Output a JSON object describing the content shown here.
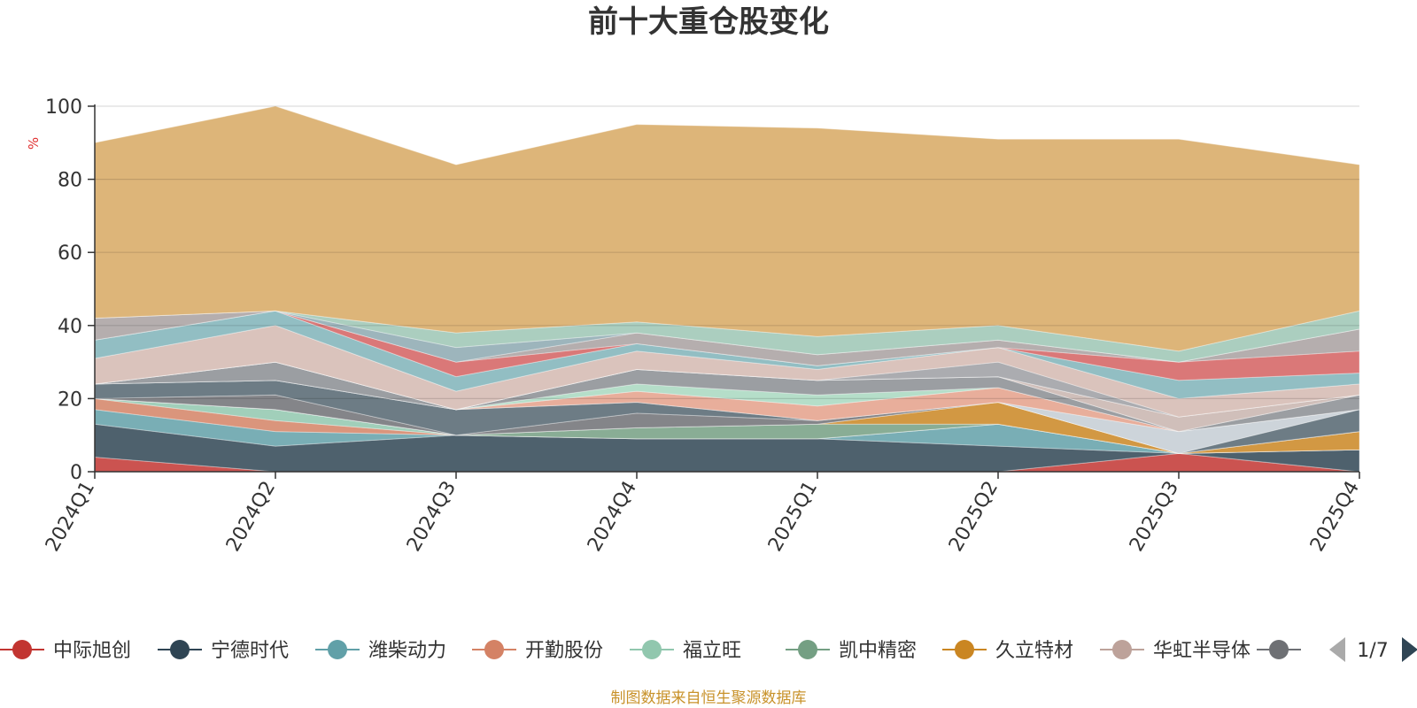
{
  "chart_data": {
    "type": "area",
    "title": "前十大重仓股变化",
    "ylabel": "%",
    "ylim": [
      0,
      100
    ],
    "yticks": [
      "0",
      "20",
      "40",
      "60",
      "80",
      "100"
    ],
    "categories": [
      "2024Q1",
      "2024Q2",
      "2024Q3",
      "2024Q4",
      "2025Q1",
      "2025Q2",
      "2025Q3",
      "2025Q4"
    ],
    "series": [
      {
        "name": "中际旭创",
        "color": "#c23531",
        "values": [
          4,
          0,
          0,
          0,
          0,
          0,
          5,
          0
        ]
      },
      {
        "name": "宁德时代",
        "color": "#2f4554",
        "values": [
          9,
          7,
          10,
          9,
          9,
          7,
          0,
          6
        ]
      },
      {
        "name": "潍柴动力",
        "color": "#61a0a8",
        "values": [
          4,
          4,
          0,
          0,
          0,
          6,
          0,
          0
        ]
      },
      {
        "name": "开勤股份",
        "color": "#d48265",
        "values": [
          3,
          3,
          0,
          0,
          0,
          0,
          0,
          0
        ]
      },
      {
        "name": "福立旺",
        "color": "#91c7ae",
        "values": [
          0,
          3,
          0,
          0,
          0,
          0,
          0,
          0
        ]
      },
      {
        "name": "凯中精密",
        "color": "#749f83",
        "values": [
          0,
          0,
          0,
          3,
          4,
          0,
          0,
          0
        ]
      },
      {
        "name": "久立特材",
        "color": "#ca8622",
        "values": [
          0,
          0,
          0,
          0,
          0,
          6,
          0,
          5
        ]
      },
      {
        "name": "华虹半导体",
        "color": "#bda29a",
        "values": [
          0,
          0,
          0,
          0,
          0,
          0,
          0,
          0
        ]
      },
      {
        "name": "",
        "color": "#6e7074",
        "values": [
          0,
          4,
          0,
          4,
          1,
          0,
          0,
          0
        ]
      },
      {
        "name": "",
        "color": "#546570",
        "values": [
          4,
          4,
          7,
          3,
          0,
          0,
          0,
          6
        ]
      },
      {
        "name": "",
        "color": "#c4ccd3",
        "values": [
          0,
          0,
          0,
          0,
          0,
          0,
          6,
          0
        ]
      },
      {
        "name": "",
        "color": "#e4a08a",
        "values": [
          0,
          0,
          0,
          3,
          4,
          4,
          0,
          0
        ]
      },
      {
        "name": "",
        "color": "#a8d8c0",
        "values": [
          0,
          0,
          0,
          2,
          3,
          0,
          0,
          0
        ]
      },
      {
        "name": "",
        "color": "#8a8d92",
        "values": [
          0,
          5,
          0,
          4,
          4,
          3,
          0,
          4
        ]
      },
      {
        "name": "",
        "color": "#d58080",
        "values": [
          0,
          0,
          0,
          0,
          0,
          0,
          0,
          0
        ]
      },
      {
        "name": "",
        "color": "#c8b4ae",
        "values": [
          0,
          0,
          0,
          0,
          0,
          0,
          4,
          0
        ]
      },
      {
        "name": "",
        "color": "#90a0a8",
        "values": [
          0,
          0,
          0,
          0,
          0,
          0,
          0,
          0
        ]
      },
      {
        "name": "",
        "color": "#9c9ea2",
        "values": [
          0,
          0,
          0,
          0,
          0,
          4,
          0,
          0
        ]
      },
      {
        "name": "",
        "color": "#d4b8b0",
        "values": [
          7,
          10,
          5,
          5,
          3,
          4,
          5,
          3
        ]
      },
      {
        "name": "",
        "color": "#7fb3b8",
        "values": [
          5,
          4,
          4,
          2,
          1,
          0,
          5,
          3
        ]
      },
      {
        "name": "",
        "color": "#d46060",
        "values": [
          0,
          0,
          4,
          0,
          0,
          0,
          5,
          6
        ]
      },
      {
        "name": "",
        "color": "#a8a0a0",
        "values": [
          6,
          0,
          0,
          3,
          3,
          2,
          0,
          6
        ]
      },
      {
        "name": "",
        "color": "#8ca8b0",
        "values": [
          0,
          0,
          4,
          0,
          0,
          0,
          0,
          0
        ]
      },
      {
        "name": "",
        "color": "#9cc6b4",
        "values": [
          0,
          0,
          4,
          3,
          5,
          4,
          3,
          5
        ]
      },
      {
        "name": "",
        "color": "#d7a861",
        "values": [
          48,
          56,
          46,
          54,
          57,
          51,
          58,
          40
        ]
      }
    ]
  },
  "legend": {
    "items": [
      {
        "name": "中际旭创",
        "color": "#c23531"
      },
      {
        "name": "宁德时代",
        "color": "#2f4554"
      },
      {
        "name": "潍柴动力",
        "color": "#61a0a8"
      },
      {
        "name": "开勤股份",
        "color": "#d48265"
      },
      {
        "name": "福立旺",
        "color": "#91c7ae"
      },
      {
        "name": "凯中精密",
        "color": "#749f83"
      },
      {
        "name": "久立特材",
        "color": "#ca8622"
      },
      {
        "name": "华虹半导体",
        "color": "#bda29a"
      },
      {
        "name": "",
        "color": "#6e7074"
      }
    ],
    "page_indicator": "1/7",
    "prev_icon": "triangle-left-icon",
    "next_icon": "triangle-right-icon"
  },
  "source_note": "制图数据来自恒生聚源数据库"
}
